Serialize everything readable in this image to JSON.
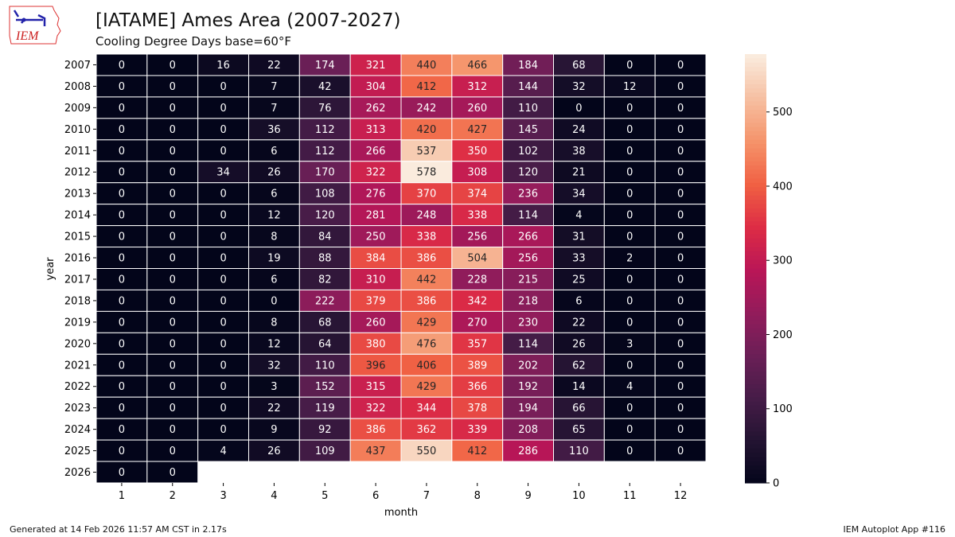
{
  "header": {
    "title": "[IATAME] Ames Area (2007-2027)",
    "subtitle": "Cooling Degree Days base=60°F",
    "logo_text": "IEM"
  },
  "footer": {
    "left": "Generated at 14 Feb 2026 11:57 AM CST in 2.17s",
    "right": "IEM Autoplot App #116"
  },
  "chart_data": {
    "type": "heatmap",
    "xlabel": "month",
    "ylabel": "year",
    "x_categories": [
      "1",
      "2",
      "3",
      "4",
      "5",
      "6",
      "7",
      "8",
      "9",
      "10",
      "11",
      "12"
    ],
    "y_categories": [
      "2007",
      "2008",
      "2009",
      "2010",
      "2011",
      "2012",
      "2013",
      "2014",
      "2015",
      "2016",
      "2017",
      "2018",
      "2019",
      "2020",
      "2021",
      "2022",
      "2023",
      "2024",
      "2025",
      "2026"
    ],
    "values": [
      [
        0,
        0,
        16,
        22,
        174,
        321,
        440,
        466,
        184,
        68,
        0,
        0
      ],
      [
        0,
        0,
        0,
        7,
        42,
        304,
        412,
        312,
        144,
        32,
        12,
        0
      ],
      [
        0,
        0,
        0,
        7,
        76,
        262,
        242,
        260,
        110,
        0,
        0,
        0
      ],
      [
        0,
        0,
        0,
        36,
        112,
        313,
        420,
        427,
        145,
        24,
        0,
        0
      ],
      [
        0,
        0,
        0,
        6,
        112,
        266,
        537,
        350,
        102,
        38,
        0,
        0
      ],
      [
        0,
        0,
        34,
        26,
        170,
        322,
        578,
        308,
        120,
        21,
        0,
        0
      ],
      [
        0,
        0,
        0,
        6,
        108,
        276,
        370,
        374,
        236,
        34,
        0,
        0
      ],
      [
        0,
        0,
        0,
        12,
        120,
        281,
        248,
        338,
        114,
        4,
        0,
        0
      ],
      [
        0,
        0,
        0,
        8,
        84,
        250,
        338,
        256,
        266,
        31,
        0,
        0
      ],
      [
        0,
        0,
        0,
        19,
        88,
        384,
        386,
        504,
        256,
        33,
        2,
        0
      ],
      [
        0,
        0,
        0,
        6,
        82,
        310,
        442,
        228,
        215,
        25,
        0,
        0
      ],
      [
        0,
        0,
        0,
        0,
        222,
        379,
        386,
        342,
        218,
        6,
        0,
        0
      ],
      [
        0,
        0,
        0,
        8,
        68,
        260,
        429,
        270,
        230,
        22,
        0,
        0
      ],
      [
        0,
        0,
        0,
        12,
        64,
        380,
        476,
        357,
        114,
        26,
        3,
        0
      ],
      [
        0,
        0,
        0,
        32,
        110,
        396,
        406,
        389,
        202,
        62,
        0,
        0
      ],
      [
        0,
        0,
        0,
        3,
        152,
        315,
        429,
        366,
        192,
        14,
        4,
        0
      ],
      [
        0,
        0,
        0,
        22,
        119,
        322,
        344,
        378,
        194,
        66,
        0,
        0
      ],
      [
        0,
        0,
        0,
        9,
        92,
        386,
        362,
        339,
        208,
        65,
        0,
        0
      ],
      [
        0,
        0,
        4,
        26,
        109,
        437,
        550,
        412,
        286,
        110,
        0,
        0
      ],
      [
        0,
        0,
        null,
        null,
        null,
        null,
        null,
        null,
        null,
        null,
        null,
        null
      ]
    ],
    "colormap": "rocket",
    "colorbar": {
      "range": [
        0,
        578
      ],
      "ticks": [
        0,
        100,
        200,
        300,
        400,
        500
      ]
    }
  }
}
